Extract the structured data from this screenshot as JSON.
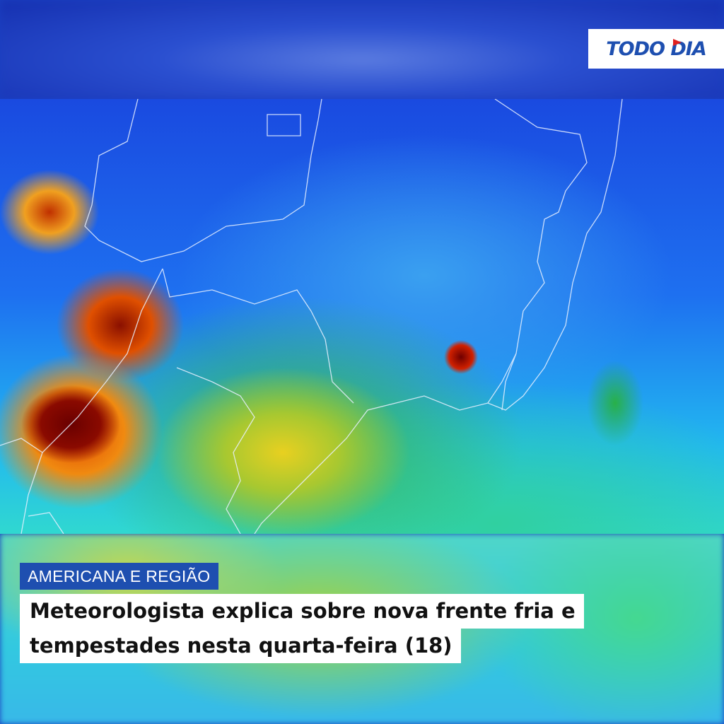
{
  "brand": {
    "logo_text": "TODO DIA",
    "accent_color": "#1e4fb0",
    "flag_color": "#e02020"
  },
  "category": "AMERICANA E REGIÃO",
  "headline": {
    "line1": "Meteorologista explica sobre nova frente fria e",
    "line2": "tempestades nesta quarta-feira (18)"
  },
  "image": {
    "subject": "satellite-infrared-map"
  }
}
